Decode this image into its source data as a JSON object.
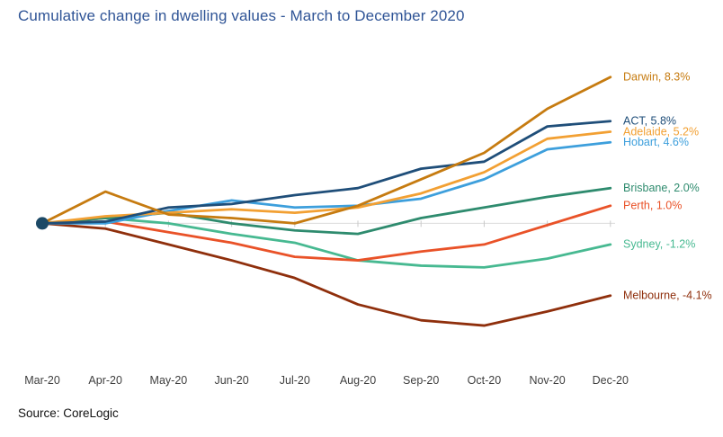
{
  "header": {
    "title": "Cumulative change in dwelling values - March to December 2020",
    "title_color": "#2F5496"
  },
  "footer": {
    "source": "Source: CoreLogic"
  },
  "chart_data": {
    "type": "line",
    "title": "Cumulative change in dwelling values - March to December 2020",
    "xlabel": "",
    "ylabel": "",
    "x": [
      "Mar-20",
      "Apr-20",
      "May-20",
      "Jun-20",
      "Jul-20",
      "Aug-20",
      "Sep-20",
      "Oct-20",
      "Nov-20",
      "Dec-20"
    ],
    "unit": "%",
    "ylim": [
      -6.5,
      9.5
    ],
    "grid": "zero-line-only",
    "legend_position": "right-end-labels",
    "series": [
      {
        "name": "Darwin",
        "label": "Darwin, 8.3%",
        "color": "#C67B10",
        "values": [
          0,
          1.8,
          0.5,
          0.3,
          0.0,
          1.0,
          2.5,
          4.0,
          6.5,
          8.3
        ]
      },
      {
        "name": "ACT",
        "label": "ACT, 5.8%",
        "color": "#1F4E79",
        "values": [
          0,
          0.1,
          0.9,
          1.1,
          1.6,
          2.0,
          3.1,
          3.5,
          5.5,
          5.8
        ]
      },
      {
        "name": "Adelaide",
        "label": "Adelaide, 5.2%",
        "color": "#F2A033",
        "values": [
          0,
          0.4,
          0.6,
          0.8,
          0.6,
          0.9,
          1.7,
          2.9,
          4.8,
          5.2
        ]
      },
      {
        "name": "Hobart",
        "label": "Hobart, 4.6%",
        "color": "#3D9FDC",
        "values": [
          0,
          0.0,
          0.7,
          1.3,
          0.9,
          1.0,
          1.4,
          2.5,
          4.2,
          4.6
        ]
      },
      {
        "name": "Brisbane",
        "label": "Brisbane, 2.0%",
        "color": "#2E8B6E",
        "values": [
          0,
          0.3,
          0.6,
          0.0,
          -0.4,
          -0.6,
          0.3,
          0.9,
          1.5,
          2.0
        ]
      },
      {
        "name": "Perth",
        "label": "Perth, 1.0%",
        "color": "#E95228",
        "values": [
          0,
          0.1,
          -0.5,
          -1.1,
          -1.9,
          -2.1,
          -1.6,
          -1.2,
          -0.1,
          1.0
        ]
      },
      {
        "name": "Sydney",
        "label": "Sydney, -1.2%",
        "color": "#47B991",
        "values": [
          0,
          0.3,
          0.0,
          -0.6,
          -1.1,
          -2.1,
          -2.4,
          -2.5,
          -2.0,
          -1.2
        ]
      },
      {
        "name": "Melbourne",
        "label": "Melbourne, -4.1%",
        "color": "#8F2F0C",
        "values": [
          0,
          -0.3,
          -1.2,
          -2.1,
          -3.1,
          -4.6,
          -5.5,
          -5.8,
          -5.0,
          -4.1
        ]
      }
    ],
    "start_marker": {
      "month": "Mar-20",
      "value": 0,
      "color": "#1C4966"
    },
    "axis_tick_label_color": "#3F3F3F",
    "zero_line_color": "#DBDBDB",
    "tick_color": "#C9C9C9"
  }
}
